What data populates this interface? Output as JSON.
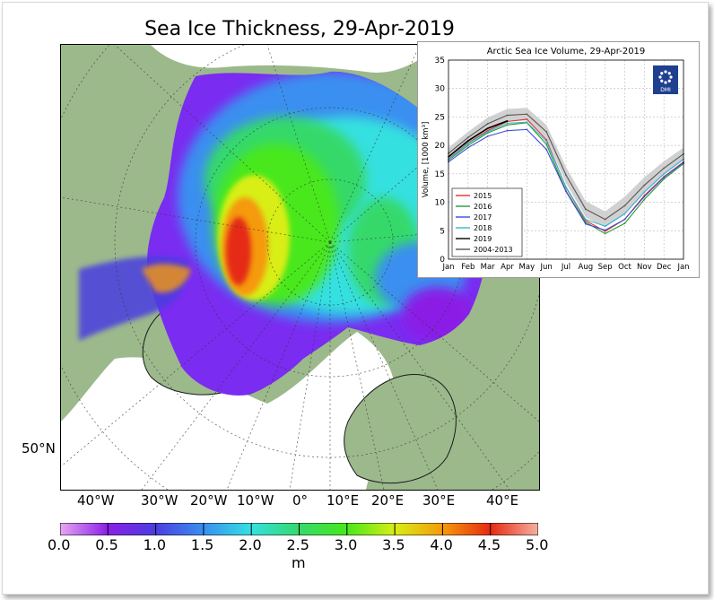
{
  "map": {
    "title": "Sea Ice Thickness, 29-Apr-2019",
    "lat_label": "50°N",
    "lon_labels": [
      "40°W",
      "30°W",
      "20°W",
      "10°W",
      "0°",
      "10°E",
      "20°E",
      "30°E",
      "40°E"
    ],
    "colors": {
      "land": "#9cb98c",
      "open_ocean": "#ffffff",
      "coast": "#1a1a1a"
    }
  },
  "colorbar": {
    "ticks": [
      "0.0",
      "0.5",
      "1.0",
      "1.5",
      "2.0",
      "2.5",
      "3.0",
      "3.5",
      "4.0",
      "4.5",
      "5.0"
    ],
    "unit": "m",
    "colors": [
      "#e7a6f2",
      "#8a1fe6",
      "#4a3ee0",
      "#3a8ff0",
      "#35e0e0",
      "#35d96a",
      "#48e81c",
      "#d8ee14",
      "#f59a0a",
      "#e52a12",
      "#f5b0a0"
    ]
  },
  "chart_data": {
    "type": "line",
    "title": "Arctic Sea Ice Volume, 29-Apr-2019",
    "xlabel": "",
    "ylabel": "Volume, [1000 km³]",
    "ylim": [
      0,
      35
    ],
    "yticks": [
      "0",
      "5",
      "10",
      "15",
      "20",
      "25",
      "30",
      "35"
    ],
    "categories": [
      "Jan",
      "Feb",
      "Mar",
      "Apr",
      "May",
      "Jun",
      "Jul",
      "Aug",
      "Sep",
      "Oct",
      "Nov",
      "Dec",
      "Jan"
    ],
    "grid": true,
    "legend_position": "bottom-left",
    "logo_text": "DMI",
    "series": [
      {
        "name": "2015",
        "color": "#e8302a",
        "values": [
          17.6,
          20.4,
          22.6,
          24.2,
          24.6,
          21.0,
          12.6,
          6.8,
          4.9,
          7.0,
          11.2,
          14.5,
          17.1
        ]
      },
      {
        "name": "2016",
        "color": "#2a9a2a",
        "values": [
          17.4,
          20.0,
          22.2,
          23.6,
          24.0,
          20.2,
          12.0,
          6.5,
          4.5,
          6.3,
          10.5,
          14.1,
          16.8
        ]
      },
      {
        "name": "2017",
        "color": "#3b4bd8",
        "values": [
          17.1,
          19.6,
          21.6,
          22.6,
          22.8,
          19.3,
          11.9,
          6.2,
          5.1,
          7.0,
          11.0,
          14.4,
          17.0
        ]
      },
      {
        "name": "2018",
        "color": "#30b8d8",
        "values": [
          17.5,
          20.3,
          22.4,
          23.9,
          24.1,
          20.7,
          12.7,
          7.0,
          5.8,
          8.0,
          11.8,
          15.0,
          17.6
        ]
      },
      {
        "name": "2019",
        "color": "#000000",
        "values": [
          18.0,
          20.8,
          23.0,
          24.3,
          null,
          null,
          null,
          null,
          null,
          null,
          null,
          null,
          null
        ]
      },
      {
        "name": "2004-2013",
        "color": "#555555",
        "values": [
          18.6,
          21.4,
          23.8,
          25.3,
          25.5,
          22.4,
          14.8,
          8.8,
          7.0,
          9.4,
          13.0,
          16.0,
          18.5
        ]
      }
    ],
    "band": {
      "color": "#cccccc",
      "lower": [
        17.6,
        20.4,
        22.7,
        24.2,
        24.4,
        21.2,
        13.4,
        7.4,
        5.6,
        7.8,
        11.6,
        14.8,
        17.4
      ],
      "upper": [
        19.6,
        22.4,
        24.9,
        26.4,
        26.6,
        23.6,
        16.2,
        10.2,
        8.4,
        11.0,
        14.4,
        17.2,
        19.6
      ]
    }
  }
}
